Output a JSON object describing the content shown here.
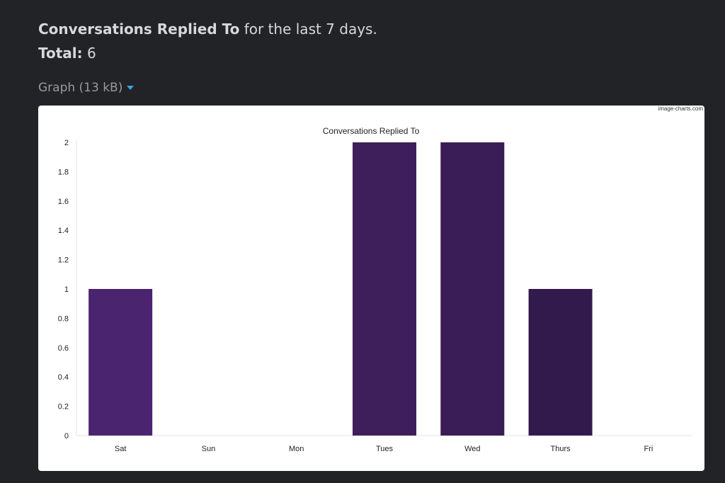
{
  "header": {
    "metric": "Conversations Replied To",
    "suffix": " for the last 7 days.",
    "total_label": "Total:",
    "total_value": " 6"
  },
  "attachment": {
    "label": "Graph (13 kB)",
    "caret_icon": "caret-down-icon"
  },
  "watermark": "image-charts.com",
  "chart_data": {
    "type": "bar",
    "title": "Conversations Replied To",
    "categories": [
      "Sat",
      "Sun",
      "Mon",
      "Tues",
      "Wed",
      "Thurs",
      "Fri"
    ],
    "values": [
      1,
      0,
      0,
      2,
      2,
      1,
      0
    ],
    "ylim": [
      0,
      2
    ],
    "yticks": [
      "0",
      "0.2",
      "0.4",
      "0.6",
      "0.8",
      "1",
      "1.2",
      "1.4",
      "1.6",
      "1.8",
      "2"
    ],
    "xlabel": "",
    "ylabel": "",
    "grid": false,
    "bar_colors": [
      "#4b2470",
      "#47226a",
      "#442165",
      "#3e1f5c",
      "#3a1d57",
      "#331a4c",
      "#2f1846"
    ]
  }
}
